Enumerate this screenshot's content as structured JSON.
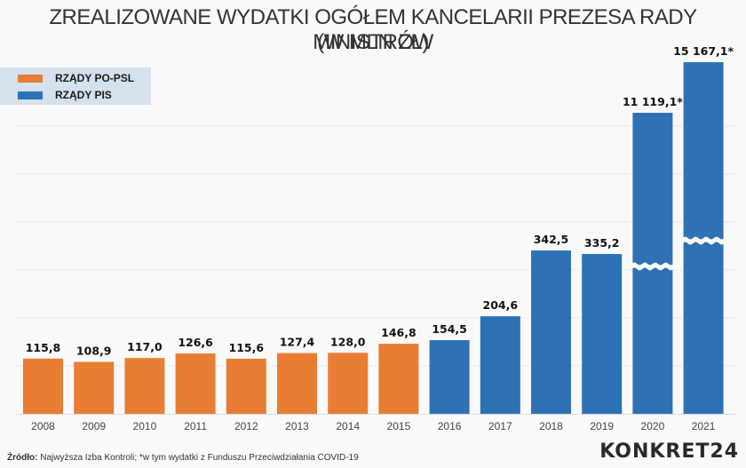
{
  "chart_data": {
    "type": "bar",
    "title": "ZREALIZOWANE WYDATKI OGÓŁEM KANCELARII PREZESA RADY MINISTRÓW",
    "subtitle": "(W MLN ZŁ)",
    "xlabel": "",
    "ylabel": "",
    "ylim": [
      0,
      700
    ],
    "grid": true,
    "legend_position": "top-left",
    "categories": [
      "2008",
      "2009",
      "2010",
      "2011",
      "2012",
      "2013",
      "2014",
      "2015",
      "2016",
      "2017",
      "2018",
      "2019",
      "2020",
      "2021"
    ],
    "values": [
      115.8,
      108.9,
      117.0,
      126.6,
      115.6,
      127.4,
      128.0,
      146.8,
      154.5,
      204.6,
      342.5,
      335.2,
      11119.1,
      15167.1
    ],
    "value_labels": [
      "115,8",
      "108,9",
      "117,0",
      "126,6",
      "115,6",
      "127,4",
      "128,0",
      "146,8",
      "154,5",
      "204,6",
      "342,5",
      "335,2",
      "11 119,1*",
      "15 167,1*"
    ],
    "group": [
      "PO-PSL",
      "PO-PSL",
      "PO-PSL",
      "PO-PSL",
      "PO-PSL",
      "PO-PSL",
      "PO-PSL",
      "PO-PSL",
      "PIS",
      "PIS",
      "PIS",
      "PIS",
      "PIS",
      "PIS"
    ],
    "broken_axis_bars": [
      "2020",
      "2021"
    ],
    "series": [
      {
        "name": "RZĄDY PO-PSL",
        "color": "#e87d33"
      },
      {
        "name": "RZĄDY PIS",
        "color": "#2e71b5"
      }
    ]
  },
  "footer": {
    "source_label": "Źródło:",
    "source_text": " Najwyższa Izba Kontroli; *w tym wydatki z Funduszu Przeciwdziałania COVID-19"
  },
  "brand": "KONKRET24"
}
